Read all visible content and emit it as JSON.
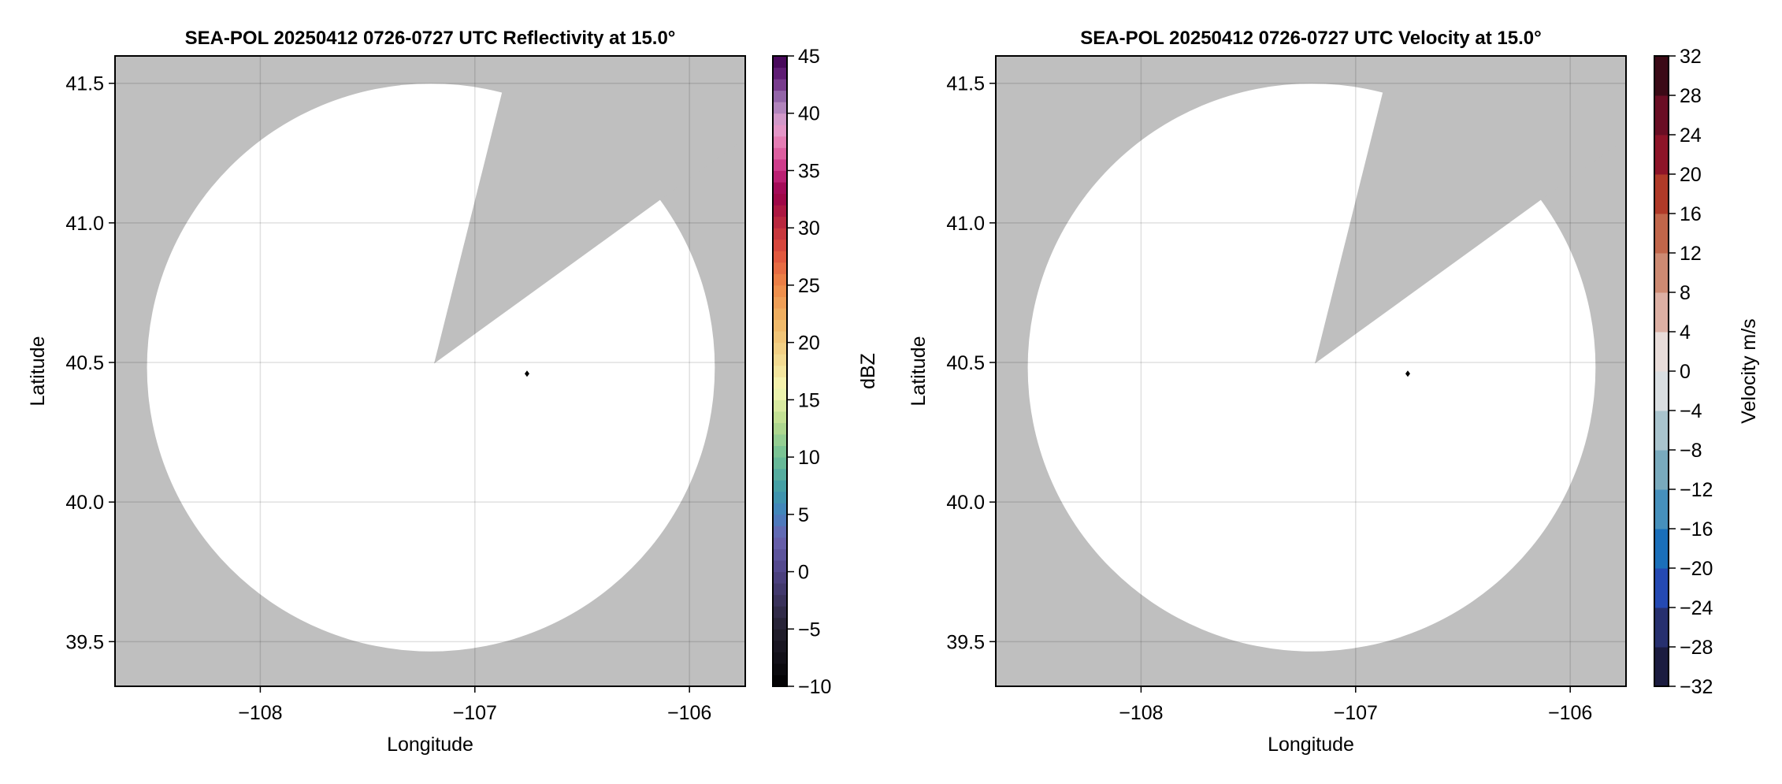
{
  "chart_data": [
    {
      "type": "heatmap",
      "title": "SEA-POL 20250412 0726-0727 UTC Reflectivity at 15.0°",
      "xlabel": "Longitude",
      "ylabel": "Latitude",
      "xlim": [
        -108.677,
        -105.74
      ],
      "ylim": [
        39.34,
        41.598
      ],
      "xticks": [
        -108,
        -107,
        -106
      ],
      "xtick_labels": [
        "−108",
        "−107",
        "−106"
      ],
      "yticks": [
        39.5,
        40.0,
        40.5,
        41.0,
        41.5
      ],
      "ytick_labels": [
        "39.5",
        "40.0",
        "40.5",
        "41.0",
        "41.5"
      ],
      "grid": true,
      "background_color": "#bfbfbf",
      "range_ring": {
        "center": [
          -107.205,
          40.482
        ],
        "radius_lon": 1.323,
        "radius_lat": 1.017,
        "fill": "#ffffff"
      },
      "blocked_sector": {
        "apex": [
          -107.19,
          40.496
        ],
        "edge1": [
          -106.878,
          41.454
        ],
        "edge2": [
          -106.148,
          41.076
        ]
      },
      "marker": {
        "lon": -106.757,
        "lat": 40.46,
        "color": "#000000"
      },
      "colorbar": {
        "label": "dBZ",
        "range": [
          -10,
          45
        ],
        "step": 1,
        "ticks": [
          -10,
          -5,
          0,
          5,
          10,
          15,
          20,
          25,
          30,
          35,
          40,
          45
        ],
        "tick_labels": [
          "−10",
          "−5",
          "0",
          "5",
          "10",
          "15",
          "20",
          "25",
          "30",
          "35",
          "40",
          "45"
        ],
        "color_anchors": [
          [
            -10,
            "#000000"
          ],
          [
            -5,
            "#24202f"
          ],
          [
            0,
            "#4f4487"
          ],
          [
            3,
            "#6a63b0"
          ],
          [
            5,
            "#4480c0"
          ],
          [
            7,
            "#3d9aa8"
          ],
          [
            10,
            "#6fbf95"
          ],
          [
            13,
            "#b9dc8e"
          ],
          [
            16,
            "#f6f8b4"
          ],
          [
            18,
            "#f3e098"
          ],
          [
            22,
            "#efb565"
          ],
          [
            25,
            "#ef8848"
          ],
          [
            28,
            "#de4f3d"
          ],
          [
            31,
            "#b2203f"
          ],
          [
            33,
            "#98004b"
          ],
          [
            35,
            "#c62b80"
          ],
          [
            37,
            "#e570ab"
          ],
          [
            39,
            "#e3a2d0"
          ],
          [
            41,
            "#a07ab5"
          ],
          [
            43,
            "#6a2780"
          ],
          [
            45,
            "#3e0050"
          ]
        ]
      }
    },
    {
      "type": "heatmap",
      "title": "SEA-POL 20250412 0726-0727 UTC Velocity at 15.0°",
      "xlabel": "Longitude",
      "ylabel": "Latitude",
      "xlim": [
        -108.677,
        -105.74
      ],
      "ylim": [
        39.34,
        41.598
      ],
      "xticks": [
        -108,
        -107,
        -106
      ],
      "xtick_labels": [
        "−108",
        "−107",
        "−106"
      ],
      "yticks": [
        39.5,
        40.0,
        40.5,
        41.0,
        41.5
      ],
      "ytick_labels": [
        "39.5",
        "40.0",
        "40.5",
        "41.0",
        "41.5"
      ],
      "grid": true,
      "background_color": "#bfbfbf",
      "range_ring": {
        "center": [
          -107.205,
          40.482
        ],
        "radius_lon": 1.323,
        "radius_lat": 1.017,
        "fill": "#ffffff"
      },
      "blocked_sector": {
        "apex": [
          -107.19,
          40.496
        ],
        "edge1": [
          -106.878,
          41.454
        ],
        "edge2": [
          -106.148,
          41.076
        ]
      },
      "marker": {
        "lon": -106.757,
        "lat": 40.46,
        "color": "#000000"
      },
      "colorbar": {
        "label": "Velocity m/s",
        "range": [
          -32,
          32
        ],
        "step": 4,
        "ticks": [
          -32,
          -28,
          -24,
          -20,
          -16,
          -12,
          -8,
          -4,
          0,
          4,
          8,
          12,
          16,
          20,
          24,
          28,
          32
        ],
        "tick_labels": [
          "−32",
          "−28",
          "−24",
          "−20",
          "−16",
          "−12",
          "−8",
          "−4",
          "0",
          "4",
          "8",
          "12",
          "16",
          "20",
          "24",
          "28",
          "32"
        ],
        "band_colors": [
          "#1b1c40",
          "#27306f",
          "#2449b3",
          "#1a6fba",
          "#4690bc",
          "#79aabd",
          "#a9c4cd",
          "#d9dee1",
          "#e8dcd9",
          "#dcb0a4",
          "#cd8a72",
          "#c1664a",
          "#b03a28",
          "#8e1428",
          "#6a0e24",
          "#3b0a16"
        ]
      }
    }
  ]
}
